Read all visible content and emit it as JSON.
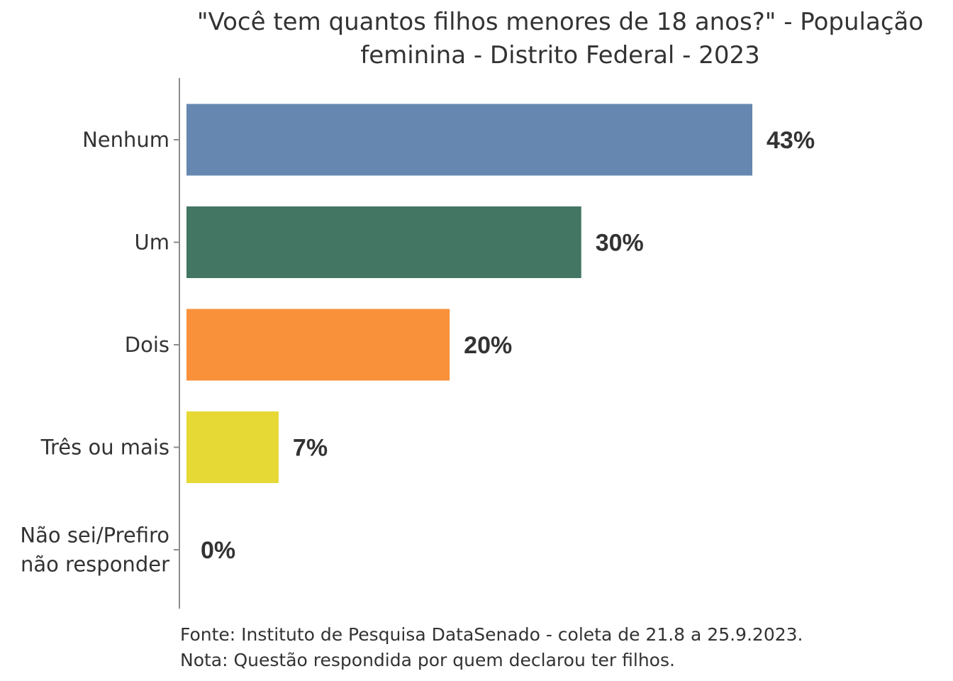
{
  "chart_data": {
    "type": "bar",
    "orientation": "horizontal",
    "title": [
      "\"Você tem quantos filhos menores de 18 anos?\" - População",
      "feminina - Distrito Federal - 2023"
    ],
    "categories": [
      [
        "Nenhum"
      ],
      [
        "Um"
      ],
      [
        "Dois"
      ],
      [
        "Três ou mais"
      ],
      [
        "Não sei/Prefiro",
        "não responder"
      ]
    ],
    "values": [
      43,
      30,
      20,
      7,
      0
    ],
    "value_labels": [
      "43%",
      "30%",
      "20%",
      "7%",
      "0%"
    ],
    "colors": [
      "#6688b0",
      "#437663",
      "#f9913a",
      "#e6d835",
      "#999999"
    ],
    "xlim": [
      0,
      43
    ],
    "xlabel": "",
    "ylabel": "",
    "grid": false,
    "legend": "none"
  },
  "footer": {
    "source": "Fonte: Instituto de Pesquisa DataSenado - coleta de 21.8 a 25.9.2023.",
    "note": "Nota: Questão respondida por quem declarou ter filhos."
  }
}
